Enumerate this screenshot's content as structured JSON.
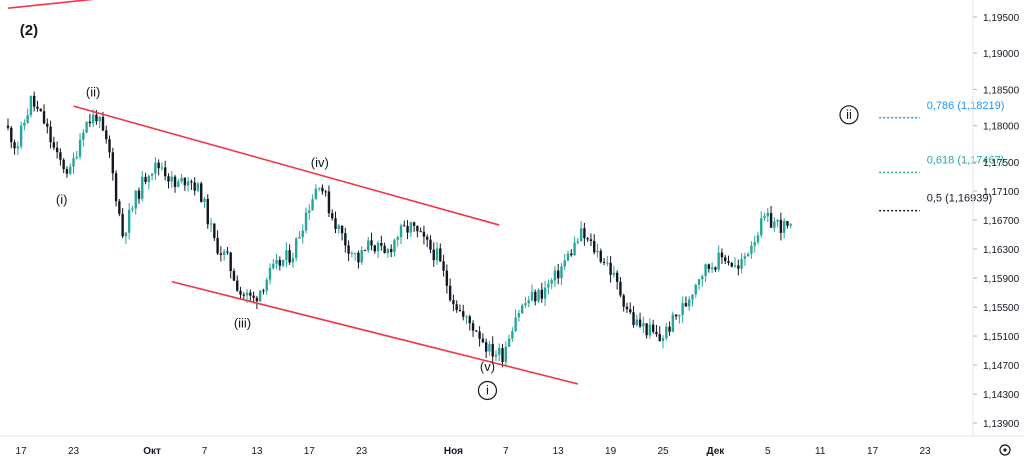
{
  "chart_data": {
    "type": "candlestick",
    "symbol_note": "",
    "colors": {
      "up": "#26a69a",
      "down": "#131722",
      "channel": "#f23645",
      "axis_border": "#e0e3eb",
      "fib_786": "#2196f3",
      "fib_618": "#22ab94",
      "fib_5": "#131722"
    },
    "y_axis": {
      "ticks": [
        "1,19500",
        "1,19000",
        "1,18500",
        "1,18000",
        "1,17500",
        "1,17100",
        "1,16700",
        "1,16300",
        "1,15900",
        "1,15500",
        "1,15100",
        "1,14700",
        "1,14300",
        "1,13900"
      ],
      "range": [
        1.1375,
        1.1965
      ]
    },
    "x_axis": {
      "ticks": [
        {
          "label": "17",
          "month": false,
          "index": 1
        },
        {
          "label": "23",
          "month": false,
          "index": 5
        },
        {
          "label": "Окт",
          "month": true,
          "index": 11
        },
        {
          "label": "7",
          "month": false,
          "index": 15
        },
        {
          "label": "13",
          "month": false,
          "index": 19
        },
        {
          "label": "17",
          "month": false,
          "index": 23
        },
        {
          "label": "23",
          "month": false,
          "index": 27
        },
        {
          "label": "Ноя",
          "month": true,
          "index": 34
        },
        {
          "label": "7",
          "month": false,
          "index": 38
        },
        {
          "label": "13",
          "month": false,
          "index": 42
        },
        {
          "label": "19",
          "month": false,
          "index": 46
        },
        {
          "label": "25",
          "month": false,
          "index": 50
        },
        {
          "label": "Дек",
          "month": true,
          "index": 54
        },
        {
          "label": "5",
          "month": false,
          "index": 58
        },
        {
          "label": "11",
          "month": false,
          "index": 62
        },
        {
          "label": "17",
          "month": false,
          "index": 66
        },
        {
          "label": "23",
          "month": false,
          "index": 70
        }
      ]
    },
    "closes": [
      1.1775,
      1.1835,
      1.1805,
      1.1755,
      1.1735,
      1.18,
      1.1815,
      1.176,
      1.165,
      1.17,
      1.174,
      1.1745,
      1.1715,
      1.173,
      1.1705,
      1.164,
      1.1615,
      1.157,
      1.156,
      1.159,
      1.161,
      1.1625,
      1.168,
      1.1725,
      1.1675,
      1.164,
      1.1615,
      1.164,
      1.162,
      1.165,
      1.166,
      1.164,
      1.162,
      1.157,
      1.1535,
      1.152,
      1.149,
      1.1485,
      1.154,
      1.156,
      1.157,
      1.159,
      1.162,
      1.165,
      1.163,
      1.161,
      1.157,
      1.153,
      1.152,
      1.1505,
      1.153,
      1.1555,
      1.1595,
      1.161,
      1.162,
      1.16,
      1.164,
      1.167,
      1.1665,
      1.1655
    ],
    "channel_lines": [
      {
        "name": "upper",
        "x1": 5,
        "y1": 1.1827,
        "x2": 37.5,
        "y2": 1.1663
      },
      {
        "name": "lower",
        "x1": 12.5,
        "y1": 1.1585,
        "x2": 43.5,
        "y2": 1.1444
      },
      {
        "name": "upper-prev",
        "x1": 0,
        "y1": 1.1962,
        "x2": 8.5,
        "y2": 1.1978
      }
    ],
    "wave_labels": [
      {
        "text": "(2)",
        "x": 1.6,
        "y": 1.1925,
        "big": true
      },
      {
        "text": "(ii)",
        "x": 6.5,
        "y": 1.184,
        "big": false
      },
      {
        "text": "(i)",
        "x": 4.1,
        "y": 1.1692,
        "big": false
      },
      {
        "text": "(iv)",
        "x": 23.8,
        "y": 1.1743,
        "big": false
      },
      {
        "text": "(iii)",
        "x": 17.9,
        "y": 1.1522,
        "big": false
      },
      {
        "text": "(v)",
        "x": 36.6,
        "y": 1.1462,
        "big": false
      }
    ],
    "circled_labels": [
      {
        "text": "i",
        "x": 36.6,
        "y": 1.1435
      },
      {
        "text": "ii",
        "x": 64.2,
        "y": 1.1815
      }
    ],
    "fibonacci": [
      {
        "label": "0,786 (1,18219)",
        "value": 1.18219,
        "color_key": "fib_786",
        "x_start": 66.5,
        "x_end": 69.6
      },
      {
        "label": "0,618 (1,17467)",
        "value": 1.17467,
        "color_key": "fib_618",
        "x_start": 66.5,
        "x_end": 69.6
      },
      {
        "label": "0,5 (1,16939)",
        "value": 1.16939,
        "color_key": "fib_5",
        "x_start": 66.5,
        "x_end": 69.6
      }
    ]
  },
  "icons": {
    "settings": "gear-icon"
  }
}
